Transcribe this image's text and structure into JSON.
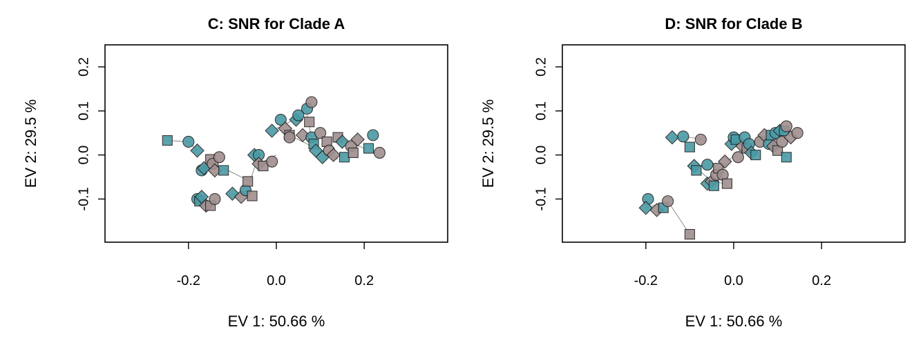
{
  "chart_data": [
    {
      "type": "scatter",
      "title": "C: SNR for Clade A",
      "xlabel": "EV 1: 50.66 %",
      "ylabel": "EV 2: 29.5 %",
      "xlim": [
        -0.39,
        0.39
      ],
      "ylim": [
        -0.198,
        0.25
      ],
      "xticks": [
        -0.2,
        0.0,
        0.2
      ],
      "xtick_labels": [
        "-0.2",
        "0.0",
        "0.2"
      ],
      "yticks": [
        -0.1,
        0.0,
        0.1,
        0.2
      ],
      "ytick_labels": [
        "-0.1",
        "0.0",
        "0.1",
        "0.2"
      ],
      "colors": {
        "teal": "#4a9aa5",
        "mauve": "#a08f8f"
      },
      "segments": [
        [
          -0.25,
          0.033,
          -0.2,
          0.03
        ],
        [
          -0.2,
          0.03,
          -0.18,
          0.01
        ],
        [
          -0.16,
          -0.015,
          -0.12,
          -0.03
        ],
        [
          -0.12,
          -0.03,
          -0.06,
          -0.06
        ],
        [
          -0.06,
          -0.06,
          -0.04,
          0.0
        ],
        [
          -0.18,
          -0.1,
          -0.15,
          -0.115
        ],
        [
          -0.06,
          -0.08,
          -0.1,
          -0.09
        ],
        [
          -0.04,
          -0.02,
          0.0,
          0.0
        ],
        [
          0.0,
          0.06,
          0.04,
          0.08
        ],
        [
          0.04,
          0.08,
          0.08,
          0.12
        ],
        [
          0.02,
          0.05,
          0.08,
          0.02
        ],
        [
          0.08,
          0.02,
          0.14,
          -0.01
        ],
        [
          0.14,
          0.04,
          0.2,
          0.015
        ],
        [
          0.07,
          0.09,
          0.08,
          0.04
        ]
      ],
      "points": [
        {
          "x": -0.248,
          "y": 0.033,
          "shape": "square",
          "group": "teal"
        },
        {
          "x": -0.2,
          "y": 0.03,
          "shape": "circle",
          "group": "teal"
        },
        {
          "x": -0.18,
          "y": 0.01,
          "shape": "diamond",
          "group": "teal"
        },
        {
          "x": -0.17,
          "y": -0.035,
          "shape": "circle",
          "group": "teal"
        },
        {
          "x": -0.165,
          "y": -0.03,
          "shape": "diamond",
          "group": "teal"
        },
        {
          "x": -0.15,
          "y": -0.01,
          "shape": "square",
          "group": "mauve"
        },
        {
          "x": -0.145,
          "y": -0.02,
          "shape": "circle",
          "group": "mauve"
        },
        {
          "x": -0.14,
          "y": -0.035,
          "shape": "diamond",
          "group": "mauve"
        },
        {
          "x": -0.13,
          "y": -0.005,
          "shape": "circle",
          "group": "mauve"
        },
        {
          "x": -0.12,
          "y": -0.035,
          "shape": "square",
          "group": "teal"
        },
        {
          "x": -0.18,
          "y": -0.1,
          "shape": "circle",
          "group": "teal"
        },
        {
          "x": -0.175,
          "y": -0.105,
          "shape": "square",
          "group": "teal"
        },
        {
          "x": -0.17,
          "y": -0.095,
          "shape": "diamond",
          "group": "teal"
        },
        {
          "x": -0.16,
          "y": -0.115,
          "shape": "diamond",
          "group": "mauve"
        },
        {
          "x": -0.15,
          "y": -0.115,
          "shape": "square",
          "group": "mauve"
        },
        {
          "x": -0.14,
          "y": -0.1,
          "shape": "circle",
          "group": "mauve"
        },
        {
          "x": -0.1,
          "y": -0.088,
          "shape": "diamond",
          "group": "teal"
        },
        {
          "x": -0.08,
          "y": -0.095,
          "shape": "diamond",
          "group": "mauve"
        },
        {
          "x": -0.07,
          "y": -0.08,
          "shape": "circle",
          "group": "teal"
        },
        {
          "x": -0.065,
          "y": -0.06,
          "shape": "square",
          "group": "mauve"
        },
        {
          "x": -0.055,
          "y": -0.093,
          "shape": "square",
          "group": "mauve"
        },
        {
          "x": -0.05,
          "y": 0.0,
          "shape": "diamond",
          "group": "teal"
        },
        {
          "x": -0.04,
          "y": 0.0,
          "shape": "circle",
          "group": "teal"
        },
        {
          "x": -0.04,
          "y": -0.02,
          "shape": "diamond",
          "group": "mauve"
        },
        {
          "x": -0.03,
          "y": -0.025,
          "shape": "square",
          "group": "mauve"
        },
        {
          "x": -0.01,
          "y": -0.015,
          "shape": "circle",
          "group": "mauve"
        },
        {
          "x": -0.01,
          "y": 0.055,
          "shape": "diamond",
          "group": "teal"
        },
        {
          "x": 0.01,
          "y": 0.08,
          "shape": "circle",
          "group": "teal"
        },
        {
          "x": 0.02,
          "y": 0.06,
          "shape": "diamond",
          "group": "mauve"
        },
        {
          "x": 0.03,
          "y": 0.045,
          "shape": "square",
          "group": "mauve"
        },
        {
          "x": 0.03,
          "y": 0.04,
          "shape": "circle",
          "group": "mauve"
        },
        {
          "x": 0.045,
          "y": 0.08,
          "shape": "diamond",
          "group": "teal"
        },
        {
          "x": 0.05,
          "y": 0.09,
          "shape": "circle",
          "group": "teal"
        },
        {
          "x": 0.06,
          "y": 0.045,
          "shape": "diamond",
          "group": "mauve"
        },
        {
          "x": 0.07,
          "y": 0.105,
          "shape": "circle",
          "group": "teal"
        },
        {
          "x": 0.075,
          "y": 0.075,
          "shape": "square",
          "group": "mauve"
        },
        {
          "x": 0.08,
          "y": 0.12,
          "shape": "circle",
          "group": "mauve"
        },
        {
          "x": 0.08,
          "y": 0.04,
          "shape": "circle",
          "group": "teal"
        },
        {
          "x": 0.085,
          "y": 0.025,
          "shape": "square",
          "group": "teal"
        },
        {
          "x": 0.09,
          "y": 0.01,
          "shape": "diamond",
          "group": "teal"
        },
        {
          "x": 0.1,
          "y": 0.05,
          "shape": "circle",
          "group": "mauve"
        },
        {
          "x": 0.105,
          "y": -0.005,
          "shape": "diamond",
          "group": "teal"
        },
        {
          "x": 0.115,
          "y": 0.03,
          "shape": "square",
          "group": "mauve"
        },
        {
          "x": 0.12,
          "y": 0.01,
          "shape": "circle",
          "group": "mauve"
        },
        {
          "x": 0.13,
          "y": 0.0,
          "shape": "diamond",
          "group": "mauve"
        },
        {
          "x": 0.14,
          "y": 0.04,
          "shape": "square",
          "group": "mauve"
        },
        {
          "x": 0.15,
          "y": 0.03,
          "shape": "diamond",
          "group": "teal"
        },
        {
          "x": 0.155,
          "y": -0.005,
          "shape": "square",
          "group": "teal"
        },
        {
          "x": 0.17,
          "y": 0.02,
          "shape": "circle",
          "group": "mauve"
        },
        {
          "x": 0.175,
          "y": 0.005,
          "shape": "square",
          "group": "mauve"
        },
        {
          "x": 0.185,
          "y": 0.035,
          "shape": "diamond",
          "group": "mauve"
        },
        {
          "x": 0.21,
          "y": 0.015,
          "shape": "square",
          "group": "teal"
        },
        {
          "x": 0.22,
          "y": 0.045,
          "shape": "circle",
          "group": "teal"
        },
        {
          "x": 0.235,
          "y": 0.005,
          "shape": "circle",
          "group": "mauve"
        }
      ]
    },
    {
      "type": "scatter",
      "title": "D: SNR for Clade B",
      "xlabel": "EV 1: 50.66 %",
      "ylabel": "EV 2: 29.5 %",
      "xlim": [
        -0.39,
        0.39
      ],
      "ylim": [
        -0.198,
        0.25
      ],
      "xticks": [
        -0.2,
        0.0,
        0.2
      ],
      "xtick_labels": [
        "-0.2",
        "0.0",
        "0.2"
      ],
      "yticks": [
        -0.1,
        0.0,
        0.1,
        0.2
      ],
      "ytick_labels": [
        "-0.1",
        "0.0",
        "0.1",
        "0.2"
      ],
      "colors": {
        "teal": "#4a9aa5",
        "mauve": "#a08f8f"
      },
      "segments": [
        [
          -0.2,
          -0.12,
          -0.15,
          -0.105
        ],
        [
          -0.15,
          -0.105,
          -0.1,
          -0.18
        ],
        [
          -0.14,
          0.04,
          -0.1,
          0.04
        ],
        [
          -0.1,
          0.04,
          -0.07,
          0.035
        ],
        [
          -0.09,
          -0.025,
          -0.05,
          -0.06
        ],
        [
          -0.05,
          -0.06,
          -0.02,
          -0.065
        ],
        [
          -0.03,
          -0.035,
          0.0,
          0.0
        ],
        [
          0.0,
          0.0,
          0.03,
          0.02
        ],
        [
          0.03,
          0.02,
          0.08,
          0.045
        ],
        [
          0.08,
          0.045,
          0.12,
          0.06
        ],
        [
          0.1,
          0.02,
          0.12,
          -0.005
        ],
        [
          0.02,
          0.03,
          0.05,
          0.0
        ]
      ],
      "points": [
        {
          "x": -0.195,
          "y": -0.1,
          "shape": "circle",
          "group": "teal"
        },
        {
          "x": -0.2,
          "y": -0.12,
          "shape": "diamond",
          "group": "teal"
        },
        {
          "x": -0.175,
          "y": -0.125,
          "shape": "diamond",
          "group": "mauve"
        },
        {
          "x": -0.16,
          "y": -0.12,
          "shape": "square",
          "group": "teal"
        },
        {
          "x": -0.15,
          "y": -0.105,
          "shape": "circle",
          "group": "mauve"
        },
        {
          "x": -0.1,
          "y": -0.18,
          "shape": "square",
          "group": "mauve"
        },
        {
          "x": -0.14,
          "y": 0.04,
          "shape": "diamond",
          "group": "teal"
        },
        {
          "x": -0.115,
          "y": 0.042,
          "shape": "circle",
          "group": "teal"
        },
        {
          "x": -0.1,
          "y": 0.018,
          "shape": "square",
          "group": "teal"
        },
        {
          "x": -0.075,
          "y": 0.035,
          "shape": "circle",
          "group": "mauve"
        },
        {
          "x": -0.09,
          "y": -0.025,
          "shape": "diamond",
          "group": "teal"
        },
        {
          "x": -0.085,
          "y": -0.035,
          "shape": "square",
          "group": "teal"
        },
        {
          "x": -0.06,
          "y": -0.022,
          "shape": "circle",
          "group": "teal"
        },
        {
          "x": -0.06,
          "y": -0.065,
          "shape": "diamond",
          "group": "teal"
        },
        {
          "x": -0.05,
          "y": -0.06,
          "shape": "diamond",
          "group": "mauve"
        },
        {
          "x": -0.045,
          "y": -0.07,
          "shape": "square",
          "group": "teal"
        },
        {
          "x": -0.04,
          "y": -0.045,
          "shape": "circle",
          "group": "mauve"
        },
        {
          "x": -0.035,
          "y": -0.03,
          "shape": "square",
          "group": "mauve"
        },
        {
          "x": -0.025,
          "y": -0.045,
          "shape": "circle",
          "group": "mauve"
        },
        {
          "x": -0.015,
          "y": -0.065,
          "shape": "square",
          "group": "mauve"
        },
        {
          "x": -0.02,
          "y": -0.015,
          "shape": "diamond",
          "group": "mauve"
        },
        {
          "x": -0.005,
          "y": 0.025,
          "shape": "diamond",
          "group": "teal"
        },
        {
          "x": 0.0,
          "y": 0.04,
          "shape": "circle",
          "group": "teal"
        },
        {
          "x": 0.005,
          "y": 0.035,
          "shape": "square",
          "group": "teal"
        },
        {
          "x": 0.01,
          "y": -0.005,
          "shape": "circle",
          "group": "mauve"
        },
        {
          "x": 0.02,
          "y": 0.02,
          "shape": "diamond",
          "group": "mauve"
        },
        {
          "x": 0.025,
          "y": 0.04,
          "shape": "circle",
          "group": "teal"
        },
        {
          "x": 0.03,
          "y": 0.015,
          "shape": "square",
          "group": "mauve"
        },
        {
          "x": 0.035,
          "y": 0.025,
          "shape": "circle",
          "group": "teal"
        },
        {
          "x": 0.04,
          "y": 0.005,
          "shape": "diamond",
          "group": "teal"
        },
        {
          "x": 0.05,
          "y": 0.0,
          "shape": "square",
          "group": "teal"
        },
        {
          "x": 0.06,
          "y": 0.03,
          "shape": "circle",
          "group": "mauve"
        },
        {
          "x": 0.07,
          "y": 0.045,
          "shape": "diamond",
          "group": "mauve"
        },
        {
          "x": 0.08,
          "y": 0.025,
          "shape": "circle",
          "group": "teal"
        },
        {
          "x": 0.085,
          "y": 0.045,
          "shape": "square",
          "group": "teal"
        },
        {
          "x": 0.09,
          "y": 0.02,
          "shape": "diamond",
          "group": "mauve"
        },
        {
          "x": 0.095,
          "y": 0.05,
          "shape": "circle",
          "group": "teal"
        },
        {
          "x": 0.1,
          "y": 0.01,
          "shape": "square",
          "group": "mauve"
        },
        {
          "x": 0.105,
          "y": 0.055,
          "shape": "diamond",
          "group": "teal"
        },
        {
          "x": 0.11,
          "y": 0.03,
          "shape": "circle",
          "group": "mauve"
        },
        {
          "x": 0.115,
          "y": 0.055,
          "shape": "square",
          "group": "teal"
        },
        {
          "x": 0.12,
          "y": 0.065,
          "shape": "circle",
          "group": "mauve"
        },
        {
          "x": 0.12,
          "y": -0.005,
          "shape": "square",
          "group": "teal"
        },
        {
          "x": 0.13,
          "y": 0.04,
          "shape": "diamond",
          "group": "mauve"
        },
        {
          "x": 0.145,
          "y": 0.05,
          "shape": "circle",
          "group": "mauve"
        }
      ]
    }
  ]
}
